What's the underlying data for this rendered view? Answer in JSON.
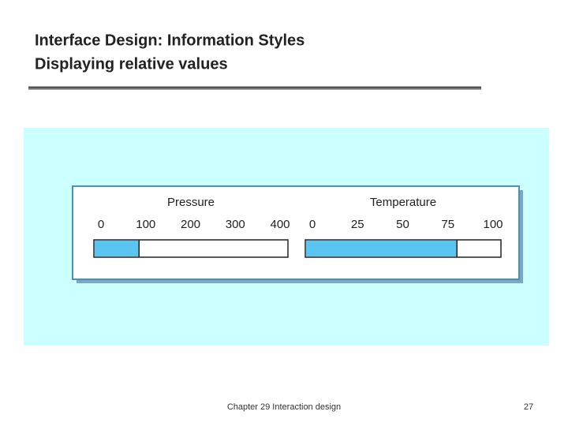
{
  "slide": {
    "title_lines": [
      "Interface Design: Information Styles",
      "Displaying relative values"
    ],
    "footer": "Chapter 29 Interaction design",
    "page_number": "27"
  },
  "chart_data": [
    {
      "type": "gauge",
      "title": "Pressure",
      "values": [
        85
      ],
      "xlim": [
        0,
        400
      ],
      "xticks": [
        0,
        100,
        200,
        300,
        400
      ],
      "color": "#5bc5f2"
    },
    {
      "type": "gauge",
      "title": "Temperature",
      "values": [
        80
      ],
      "xlim": [
        0,
        100
      ],
      "xticks": [
        0,
        25,
        50,
        75,
        100
      ],
      "color": "#5bc5f2"
    }
  ]
}
